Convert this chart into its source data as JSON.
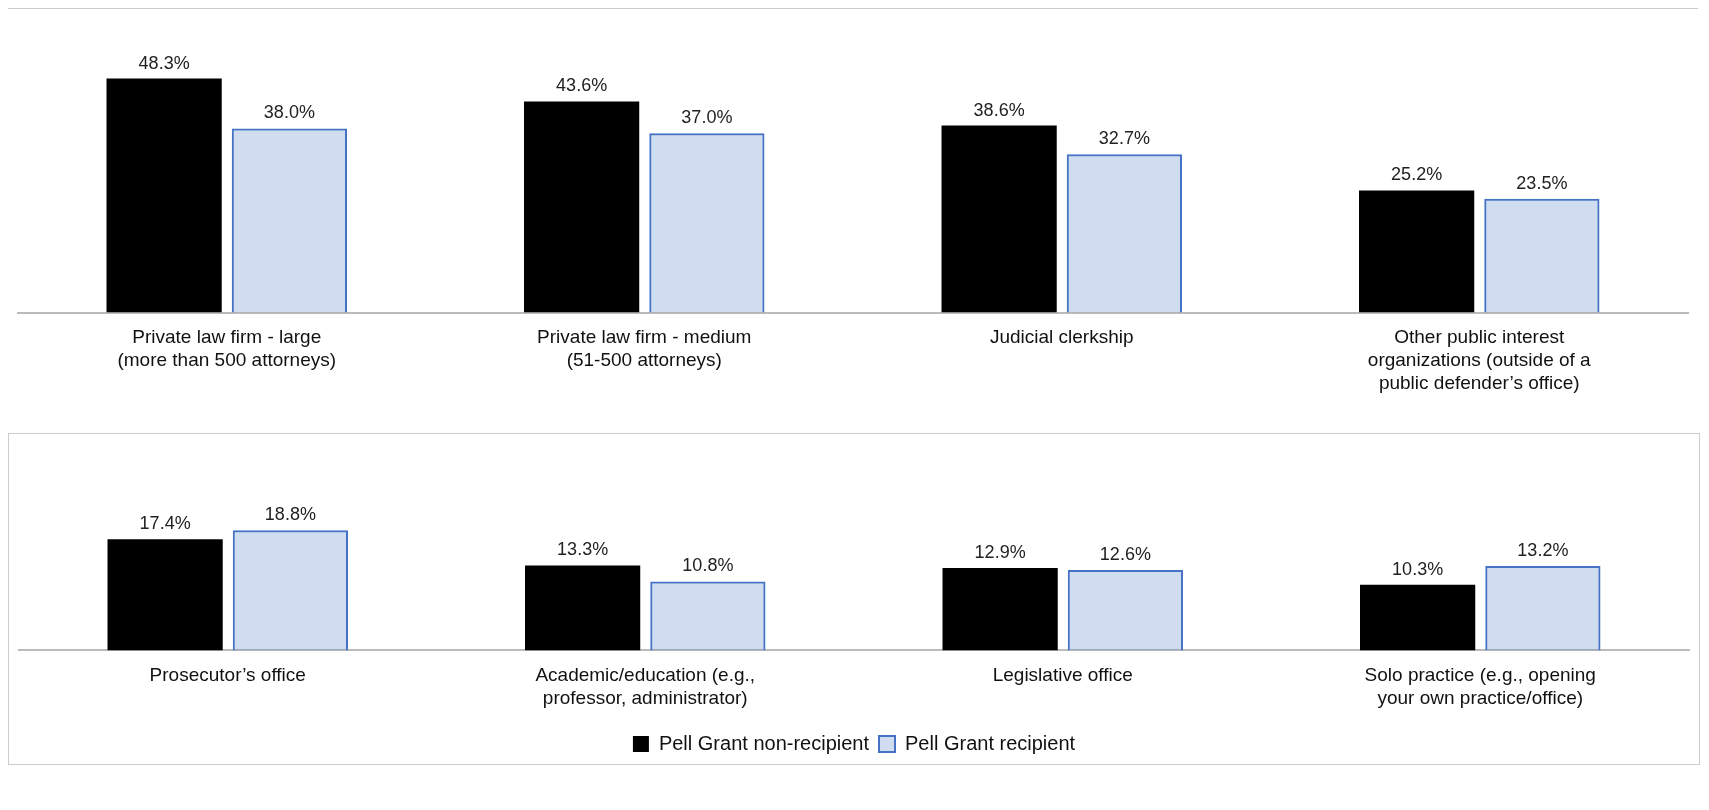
{
  "chart_data": [
    {
      "type": "bar",
      "categories": [
        "Private law firm - large (more than 500 attorneys)",
        "Private law firm - medium (51-500 attorneys)",
        "Judicial clerkship",
        "Other public interest organizations (outside of a public defender’s office)"
      ],
      "series": [
        {
          "color": "#000000",
          "values": [
            48.3,
            43.6,
            38.6,
            25.2
          ],
          "value_labels": [
            "48.3%",
            "43.6%",
            "38.6%",
            "25.2%"
          ]
        },
        {
          "color": "#4472c4",
          "values": [
            38.0,
            37.0,
            32.7,
            23.5
          ],
          "value_labels": [
            "38.0%",
            "37.0%",
            "32.7%",
            "23.5%"
          ]
        }
      ],
      "legend": false,
      "grid": false
    },
    {
      "type": "bar",
      "categories": [
        "Prosecutor’s office",
        "Academic/education (e.g., professor, administrator)",
        "Legislative office",
        "Solo practice (e.g., opening your own practice/office)"
      ],
      "series": [
        {
          "name": "Pell Grant non-recipient",
          "color": "#000000",
          "values": [
            17.4,
            13.3,
            12.9,
            10.3
          ],
          "value_labels": [
            "17.4%",
            "13.3%",
            "12.9%",
            "10.3%"
          ]
        },
        {
          "name": "Pell Grant recipient",
          "color": "#4472c4",
          "values": [
            18.8,
            10.8,
            12.6,
            13.2
          ],
          "value_labels": [
            "18.8%",
            "10.8%",
            "12.6%",
            "13.2%"
          ]
        }
      ],
      "legend": "bottom",
      "grid": false
    }
  ]
}
